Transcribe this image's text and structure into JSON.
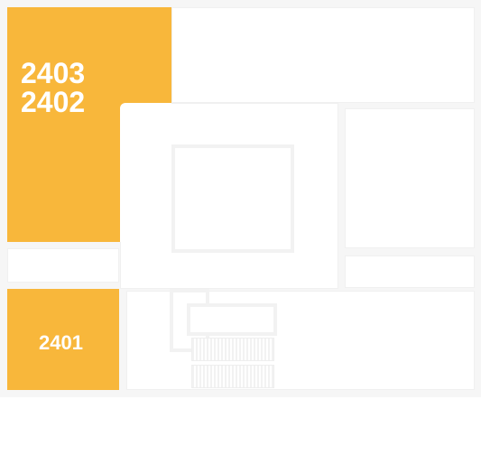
{
  "floorplan": {
    "units": [
      {
        "id": "unit-2403-2402",
        "lines": [
          "2403",
          "2402"
        ]
      },
      {
        "id": "unit-2401",
        "lines": [
          "2401"
        ]
      }
    ],
    "colors": {
      "highlight": "#f8b73b",
      "label": "#ffffff",
      "wall": "#f6f6f6",
      "background": "#ffffff"
    }
  }
}
